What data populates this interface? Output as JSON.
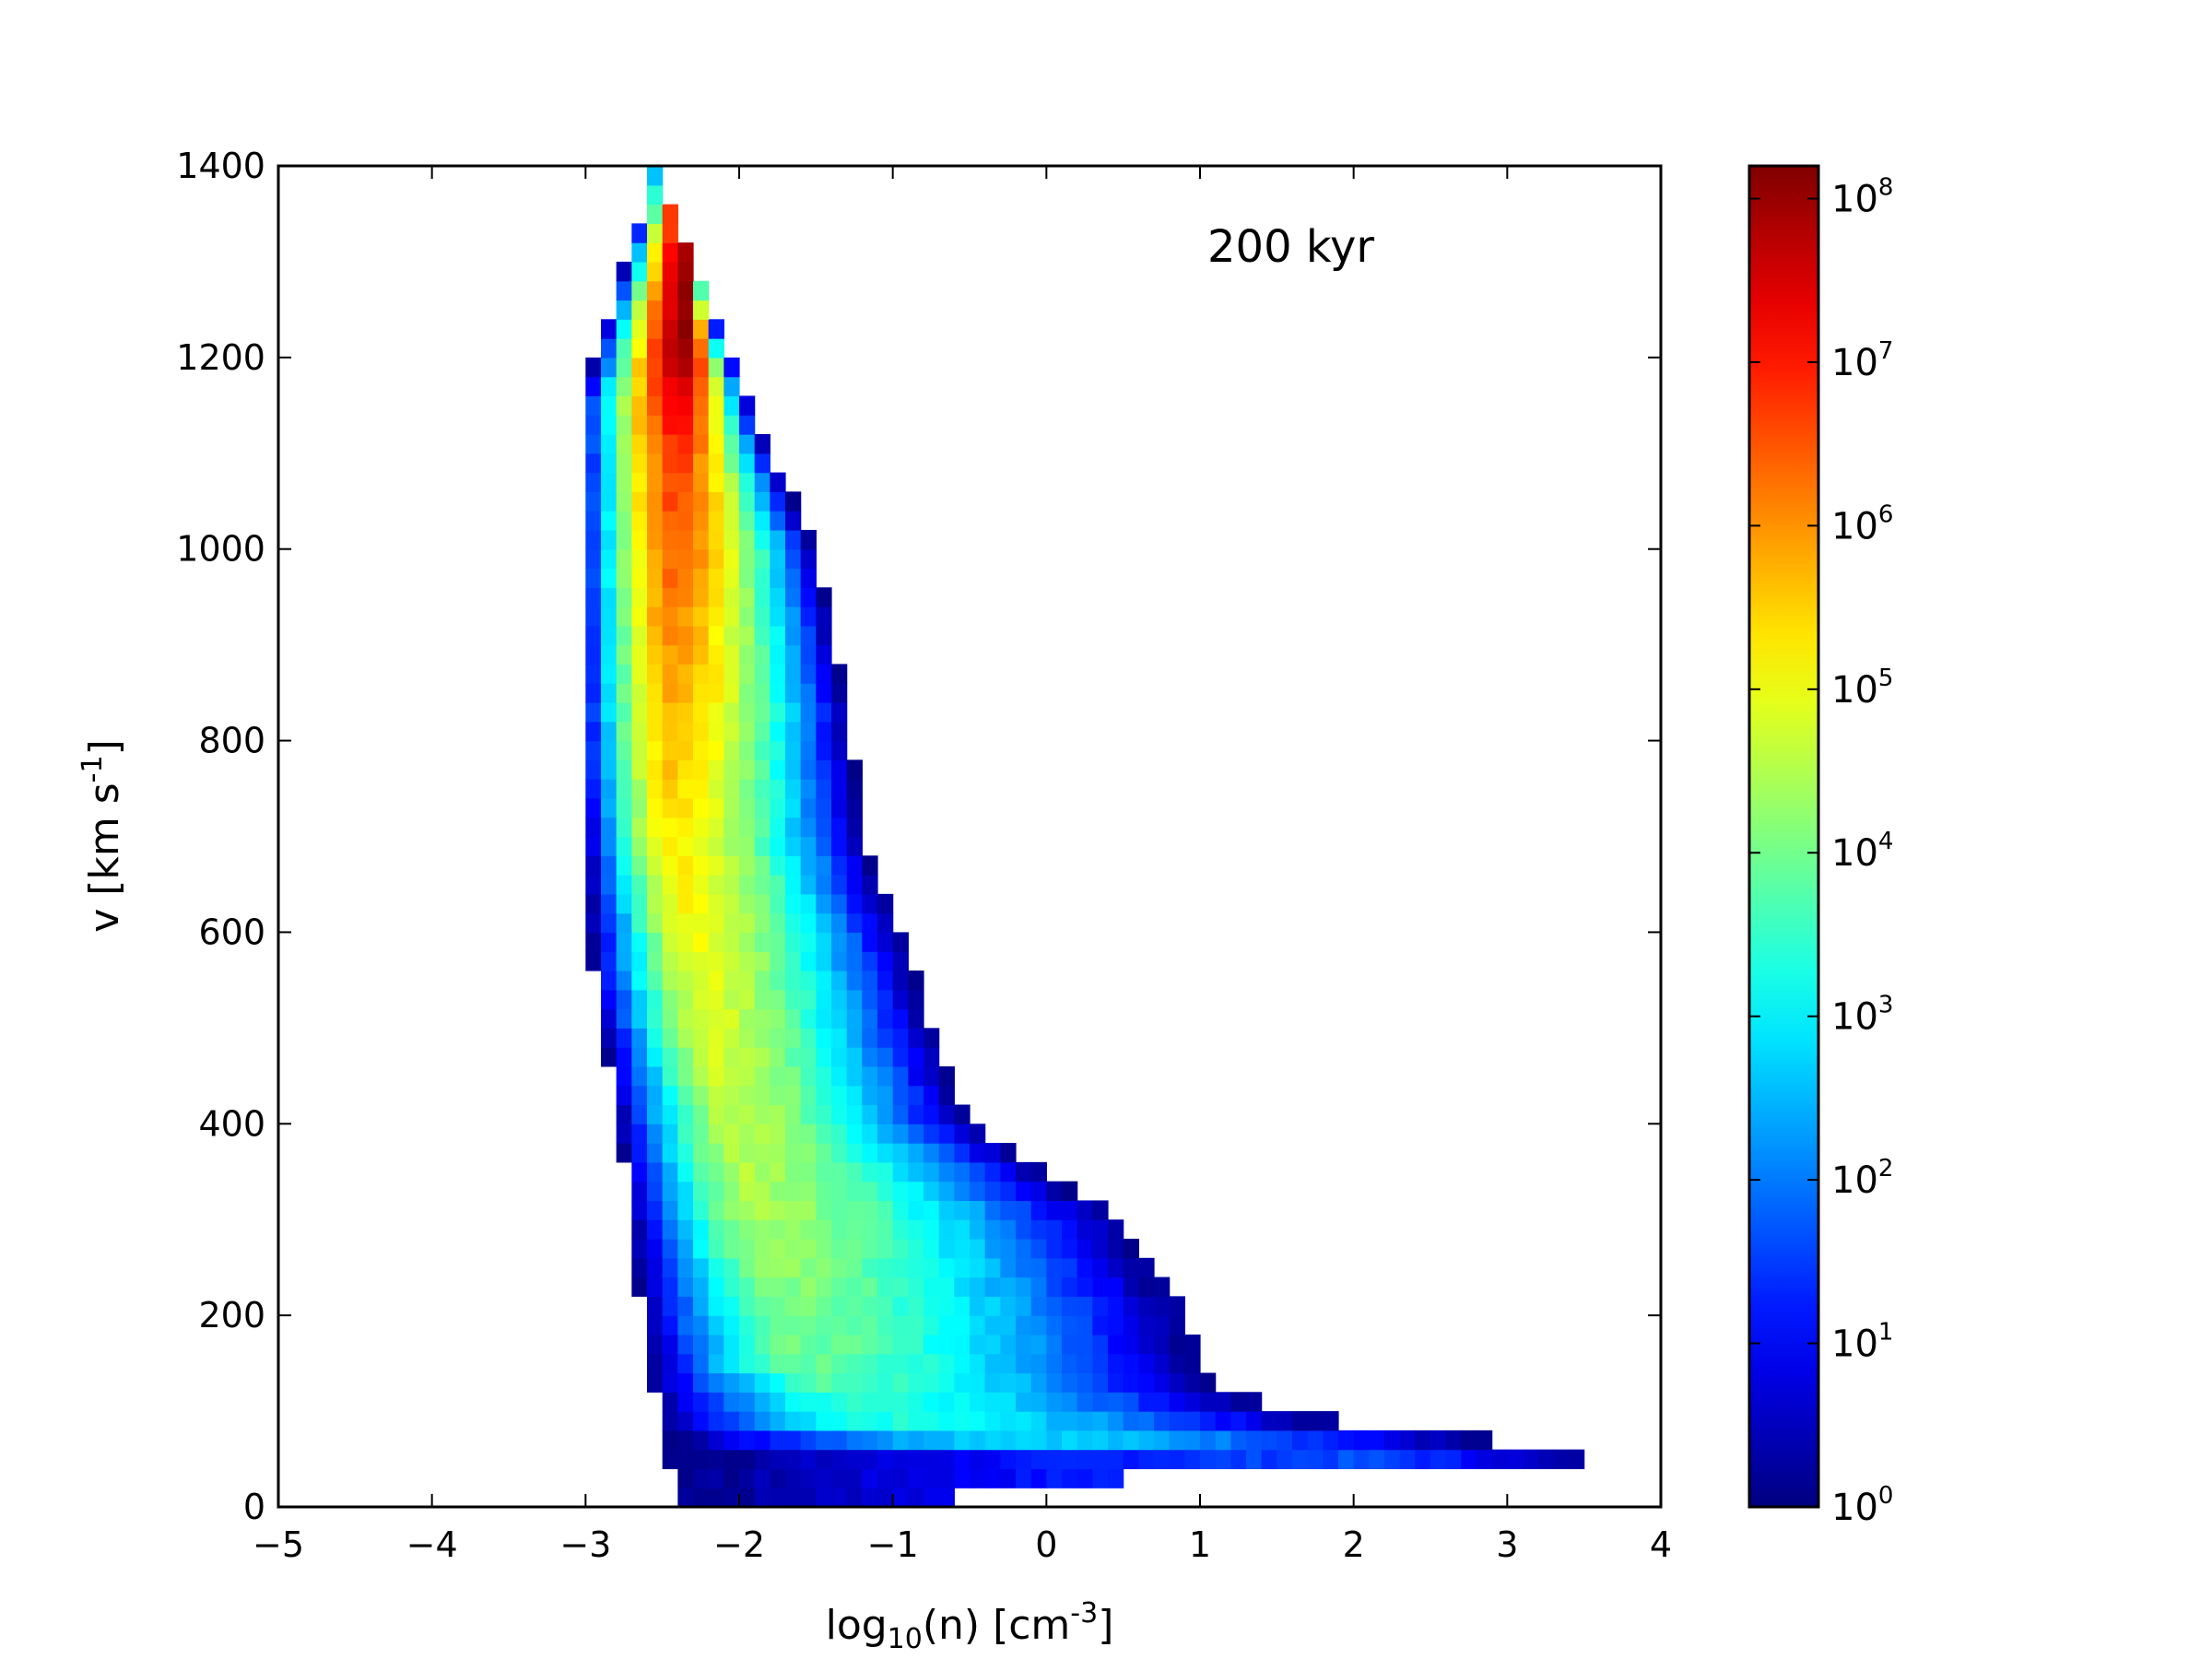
{
  "chart_data": {
    "type": "heatmap",
    "title": "",
    "annotation": "200 kyr",
    "xlabel": {
      "base": "log",
      "sub": "10",
      "rest": "(n) [cm",
      "sup": "-3",
      "end": "]"
    },
    "ylabel": {
      "base": "v [km s",
      "sup": "-1",
      "end": "]"
    },
    "xlim": [
      -5,
      4
    ],
    "ylim": [
      0,
      1400
    ],
    "xticks": [
      -5,
      -4,
      -3,
      -2,
      -1,
      0,
      1,
      2,
      3,
      4
    ],
    "xtick_labels": [
      "−5",
      "−4",
      "−3",
      "−2",
      "−1",
      "0",
      "1",
      "2",
      "3",
      "4"
    ],
    "yticks": [
      0,
      200,
      400,
      600,
      800,
      1000,
      1200,
      1400
    ],
    "ytick_labels": [
      "0",
      "200",
      "400",
      "600",
      "800",
      "1000",
      "1200",
      "1400"
    ],
    "colorbar": {
      "scale": "log",
      "range_log10": [
        0,
        8.2
      ],
      "colormap": "jet",
      "ticks_log10": [
        0,
        1,
        2,
        3,
        4,
        5,
        6,
        7,
        8
      ],
      "tick_labels": [
        {
          "base": "10",
          "exp": "0"
        },
        {
          "base": "10",
          "exp": "1"
        },
        {
          "base": "10",
          "exp": "2"
        },
        {
          "base": "10",
          "exp": "3"
        },
        {
          "base": "10",
          "exp": "4"
        },
        {
          "base": "10",
          "exp": "5"
        },
        {
          "base": "10",
          "exp": "6"
        },
        {
          "base": "10",
          "exp": "7"
        },
        {
          "base": "10",
          "exp": "8"
        }
      ]
    },
    "bin_size": {
      "x": 0.1,
      "y": 20
    },
    "distribution": {
      "description_points": "peak near log n = -2.35, v = 1200 (count ~1e8); high-velocity column between log n -3 and -1.8; low-velocity tail extending to log n 3.6 at v 40-80",
      "shell_boundary_left": [
        [
          0,
          -2.4
        ],
        [
          150,
          -2.6
        ],
        [
          350,
          -2.75
        ],
        [
          550,
          -2.95
        ],
        [
          800,
          -3.05
        ],
        [
          1000,
          -3.05
        ],
        [
          1150,
          -3.05
        ],
        [
          1250,
          -2.85
        ],
        [
          1350,
          -2.65
        ],
        [
          1400,
          -2.6
        ]
      ],
      "shell_boundary_right": [
        [
          1400,
          -2.55
        ],
        [
          1300,
          -2.3
        ],
        [
          1200,
          -2.05
        ],
        [
          1100,
          -1.8
        ],
        [
          1000,
          -1.5
        ],
        [
          850,
          -1.3
        ],
        [
          700,
          -1.2
        ],
        [
          600,
          -0.95
        ],
        [
          500,
          -0.75
        ],
        [
          400,
          -0.5
        ],
        [
          300,
          0.5
        ],
        [
          200,
          0.9
        ],
        [
          120,
          1.1
        ],
        [
          80,
          2.1
        ],
        [
          60,
          3.6
        ],
        [
          35,
          3.3
        ],
        [
          30,
          0.5
        ],
        [
          20,
          -0.5
        ],
        [
          0,
          -0.8
        ]
      ],
      "ridge": [
        [
          1200,
          -2.35
        ],
        [
          1100,
          -2.4
        ],
        [
          900,
          -2.45
        ],
        [
          700,
          -2.45
        ],
        [
          500,
          -2.2
        ],
        [
          300,
          -1.9
        ],
        [
          150,
          -1.6
        ],
        [
          80,
          -1.0
        ],
        [
          60,
          0.5
        ],
        [
          55,
          2.0
        ]
      ],
      "peak_log_count": [
        [
          1200,
          8.0
        ],
        [
          1100,
          6.8
        ],
        [
          900,
          6.0
        ],
        [
          700,
          5.3
        ],
        [
          500,
          4.8
        ],
        [
          300,
          4.4
        ],
        [
          150,
          3.9
        ],
        [
          80,
          3.2
        ],
        [
          60,
          2.4
        ],
        [
          55,
          1.6
        ]
      ]
    }
  }
}
